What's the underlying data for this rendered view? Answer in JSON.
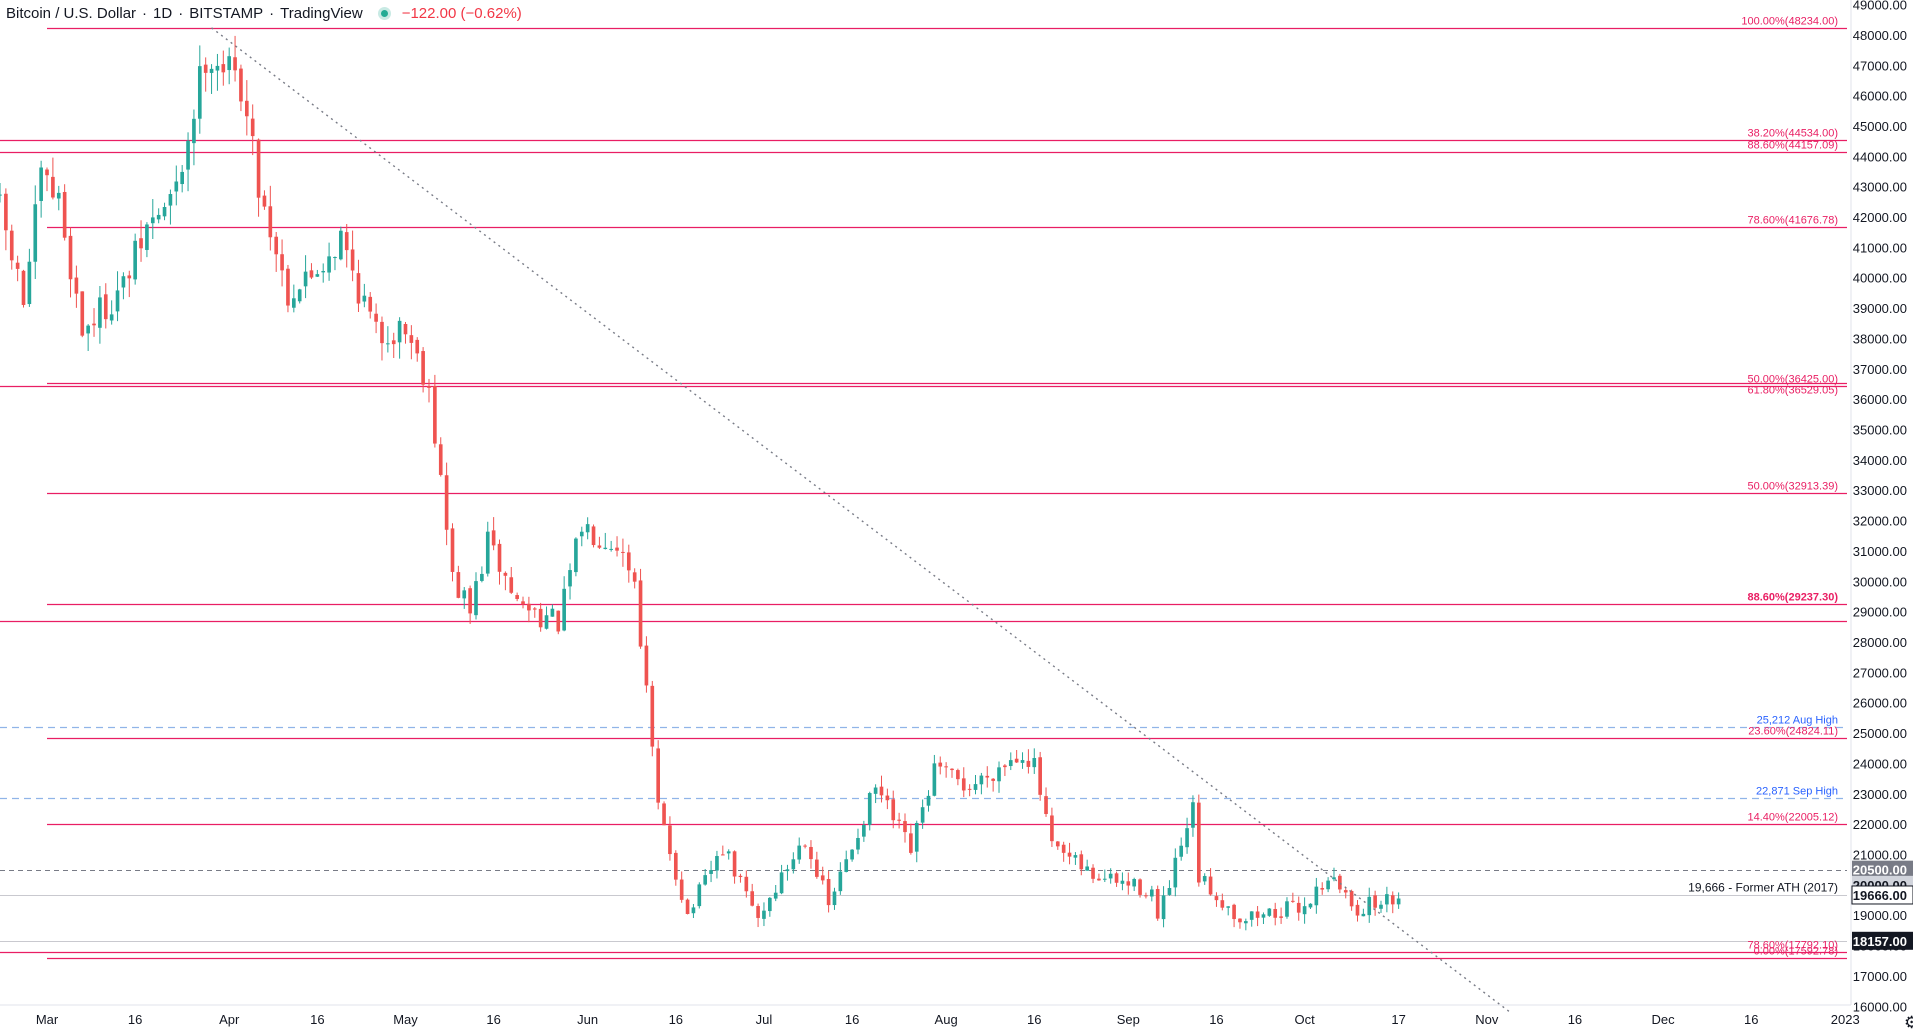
{
  "header": {
    "symbol": "Bitcoin / U.S. Dollar",
    "interval": "1D",
    "exchange": "BITSTAMP",
    "source": "TradingView",
    "change": "−122.00 (−0.62%)",
    "status_color": "#22ab94"
  },
  "colors": {
    "up": "#26a69a",
    "down": "#ef5350",
    "fib_line": "#e91e63",
    "fib_text": "#e91e63",
    "blue_dashed": "#90b4e8",
    "blue_text": "#2962ff",
    "gray_dashed": "#787b86",
    "trendline": "#787b86"
  },
  "chart_data": {
    "type": "candlestick",
    "title": "",
    "xlabel": "",
    "ylabel": "",
    "x_range": [
      "2022-02-21",
      "2023-01-03"
    ],
    "y_range": [
      15350,
      49150
    ],
    "y_ticks": [
      16000,
      17000,
      18000,
      19000,
      20000,
      21000,
      22000,
      23000,
      24000,
      25000,
      26000,
      27000,
      28000,
      29000,
      30000,
      31000,
      32000,
      33000,
      34000,
      35000,
      36000,
      37000,
      38000,
      39000,
      40000,
      41000,
      42000,
      43000,
      44000,
      45000,
      46000,
      47000,
      48000,
      49000
    ],
    "x_ticks": [
      {
        "date": "2022-03-01",
        "label": "Mar"
      },
      {
        "date": "2022-03-16",
        "label": "16"
      },
      {
        "date": "2022-04-01",
        "label": "Apr"
      },
      {
        "date": "2022-04-16",
        "label": "16"
      },
      {
        "date": "2022-05-01",
        "label": "May"
      },
      {
        "date": "2022-05-16",
        "label": "16"
      },
      {
        "date": "2022-06-01",
        "label": "Jun"
      },
      {
        "date": "2022-06-16",
        "label": "16"
      },
      {
        "date": "2022-07-01",
        "label": "Jul"
      },
      {
        "date": "2022-07-16",
        "label": "16"
      },
      {
        "date": "2022-08-01",
        "label": "Aug"
      },
      {
        "date": "2022-08-16",
        "label": "16"
      },
      {
        "date": "2022-09-01",
        "label": "Sep"
      },
      {
        "date": "2022-09-16",
        "label": "16"
      },
      {
        "date": "2022-10-01",
        "label": "Oct"
      },
      {
        "date": "2022-10-17",
        "label": "17"
      },
      {
        "date": "2022-11-01",
        "label": "Nov"
      },
      {
        "date": "2022-11-16",
        "label": "16"
      },
      {
        "date": "2022-12-01",
        "label": "Dec"
      },
      {
        "date": "2022-12-16",
        "label": "16"
      },
      {
        "date": "2023-01-01",
        "label": "2023"
      }
    ],
    "anchors": [
      {
        "date": "2022-02-21",
        "close": 42200
      },
      {
        "date": "2022-02-25",
        "close": 39200
      },
      {
        "date": "2022-02-28",
        "close": 43200
      },
      {
        "date": "2022-03-03",
        "close": 42500
      },
      {
        "date": "2022-03-07",
        "close": 38300
      },
      {
        "date": "2022-03-14",
        "close": 39700
      },
      {
        "date": "2022-03-18",
        "close": 41600
      },
      {
        "date": "2022-03-23",
        "close": 42800
      },
      {
        "date": "2022-03-28",
        "close": 47400
      },
      {
        "date": "2022-03-30",
        "close": 47200
      },
      {
        "date": "2022-04-03",
        "close": 46400
      },
      {
        "date": "2022-04-06",
        "close": 43100
      },
      {
        "date": "2022-04-11",
        "close": 39500
      },
      {
        "date": "2022-04-14",
        "close": 39900
      },
      {
        "date": "2022-04-20",
        "close": 41300
      },
      {
        "date": "2022-04-26",
        "close": 38100
      },
      {
        "date": "2022-05-01",
        "close": 38400
      },
      {
        "date": "2022-05-05",
        "close": 36500
      },
      {
        "date": "2022-05-09",
        "close": 30100
      },
      {
        "date": "2022-05-12",
        "close": 29000
      },
      {
        "date": "2022-05-15",
        "close": 31300
      },
      {
        "date": "2022-05-20",
        "close": 29300
      },
      {
        "date": "2022-05-27",
        "close": 28600
      },
      {
        "date": "2022-05-31",
        "close": 31800
      },
      {
        "date": "2022-06-06",
        "close": 31300
      },
      {
        "date": "2022-06-09",
        "close": 30100
      },
      {
        "date": "2022-06-13",
        "close": 22500
      },
      {
        "date": "2022-06-16",
        "close": 20400
      },
      {
        "date": "2022-06-18",
        "close": 19000
      },
      {
        "date": "2022-06-24",
        "close": 21200
      },
      {
        "date": "2022-06-30",
        "close": 18900
      },
      {
        "date": "2022-07-08",
        "close": 21600
      },
      {
        "date": "2022-07-12",
        "close": 19300
      },
      {
        "date": "2022-07-20",
        "close": 23200
      },
      {
        "date": "2022-07-26",
        "close": 21100
      },
      {
        "date": "2022-07-30",
        "close": 23800
      },
      {
        "date": "2022-08-05",
        "close": 23200
      },
      {
        "date": "2022-08-10",
        "close": 23900
      },
      {
        "date": "2022-08-14",
        "close": 24400
      },
      {
        "date": "2022-08-16",
        "close": 23900
      },
      {
        "date": "2022-08-19",
        "close": 21200
      },
      {
        "date": "2022-08-26",
        "close": 20300
      },
      {
        "date": "2022-09-05",
        "close": 19800
      },
      {
        "date": "2022-09-06",
        "close": 18800
      },
      {
        "date": "2022-09-12",
        "close": 22400
      },
      {
        "date": "2022-09-13",
        "close": 20200
      },
      {
        "date": "2022-09-20",
        "close": 18900
      },
      {
        "date": "2022-09-26",
        "close": 19100
      },
      {
        "date": "2022-10-01",
        "close": 19300
      },
      {
        "date": "2022-10-05",
        "close": 20300
      },
      {
        "date": "2022-10-10",
        "close": 19200
      },
      {
        "date": "2022-10-13",
        "close": 19400
      },
      {
        "date": "2022-10-17",
        "close": 19550
      }
    ],
    "horizontal_levels": [
      {
        "price": 48234.0,
        "label": "100.00%(48234.00)",
        "style": "fib",
        "from": "2022-03-01",
        "label_side": "right"
      },
      {
        "price": 44534.0,
        "label": "38.20%(44534.00)",
        "style": "fib",
        "from": "2022-02-21",
        "label_side": "right"
      },
      {
        "price": 44157.09,
        "label": "88.60%(44157.09)",
        "style": "fib",
        "from": "2022-02-21",
        "label_side": "right"
      },
      {
        "price": 41676.78,
        "label": "78.60%(41676.78)",
        "style": "fib",
        "from": "2022-03-01",
        "label_side": "right"
      },
      {
        "price": 36425.0,
        "label": "50.00%(36425.00)",
        "style": "fib",
        "from": "2022-02-21",
        "label_side": "right"
      },
      {
        "price": 36529.05,
        "label": "61.80%(36529.05)",
        "style": "fib",
        "from": "2022-03-01",
        "label_side": "right",
        "label_below": true
      },
      {
        "price": 32913.39,
        "label": "50.00%(32913.39)",
        "style": "fib",
        "from": "2022-03-01",
        "label_side": "right"
      },
      {
        "price": 29237.3,
        "label": "88.60%(29237.30)",
        "style": "fib",
        "from": "2022-03-01",
        "label_side": "right",
        "bold": true
      },
      {
        "price": 28700.0,
        "label": "",
        "style": "fib",
        "from": "2022-02-21"
      },
      {
        "price": 25212.0,
        "label": "25,212 Aug High",
        "style": "blue",
        "from": "2022-02-21",
        "label_side": "right"
      },
      {
        "price": 24824.11,
        "label": "23.60%(24824.11)",
        "style": "fib",
        "from": "2022-03-01",
        "label_side": "right"
      },
      {
        "price": 22871.0,
        "label": "22,871 Sep High",
        "style": "blue",
        "from": "2022-02-21",
        "label_side": "right"
      },
      {
        "price": 22005.12,
        "label": "14.40%(22005.12)",
        "style": "fib",
        "from": "2022-03-01",
        "label_side": "right"
      },
      {
        "price": 20500.0,
        "label": "",
        "style": "gray",
        "from": "2022-02-21"
      },
      {
        "price": 19666.0,
        "label": "19,666 - Former ATH (2017)",
        "style": "gray-solid",
        "from": "2022-02-21",
        "label_side": "right"
      },
      {
        "price": 18157.0,
        "label": "",
        "style": "gray-solid",
        "from": "2022-02-21"
      },
      {
        "price": 17792.1,
        "label": "78.60%(17792.10)",
        "style": "fib",
        "from": "2022-02-21",
        "label_side": "right"
      },
      {
        "price": 17592.78,
        "label": "0.00%(17592.78)",
        "style": "fib",
        "from": "2022-03-01",
        "label_side": "right"
      }
    ],
    "trendline": {
      "from": {
        "date": "2022-03-29",
        "price": 48234
      },
      "to": {
        "date": "2022-11-05",
        "price": 15800
      }
    },
    "price_tags": [
      {
        "price": 20500.0,
        "label": "20500.00",
        "style": "gray"
      },
      {
        "price": 20000.0,
        "label": "20000.00",
        "style": "gray-light"
      },
      {
        "price": 19666.0,
        "label": "19666.00",
        "style": "white"
      },
      {
        "price": 18157.0,
        "label": "18157.00",
        "style": "black"
      }
    ]
  }
}
